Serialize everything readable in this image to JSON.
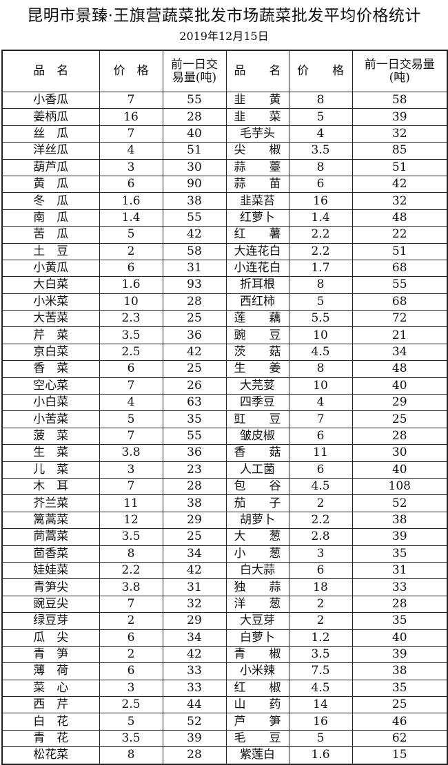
{
  "title": "昆明市景臻·王旗营蔬菜批发市场蔬菜批发平均价格统计",
  "date": "2019年12月15日",
  "headers": {
    "name": "品　名",
    "price": "价　格",
    "volume_left": "前一日交易量(吨)",
    "name2": "品　　名",
    "price2": "价　　格",
    "volume_right": "前一日交易量(吨)"
  },
  "rows": [
    [
      "小香瓜",
      "7",
      "55",
      "韭　　黄",
      "8",
      "58"
    ],
    [
      "姜柄瓜",
      "16",
      "28",
      "韭　　菜",
      "5",
      "39"
    ],
    [
      "丝　瓜",
      "7",
      "40",
      "毛芋头",
      "4",
      "32"
    ],
    [
      "洋丝瓜",
      "4",
      "51",
      "尖　　椒",
      "3.5",
      "85"
    ],
    [
      "葫芦瓜",
      "3",
      "30",
      "蒜　　薹",
      "8",
      "51"
    ],
    [
      "黄　瓜",
      "6",
      "90",
      "蒜　　苗",
      "6",
      "42"
    ],
    [
      "冬　瓜",
      "1.6",
      "38",
      "韭菜苔",
      "16",
      "32"
    ],
    [
      "南　瓜",
      "1.4",
      "55",
      "红萝卜",
      "1.4",
      "48"
    ],
    [
      "苦　瓜",
      "5",
      "42",
      "红　　薯",
      "2.2",
      "22"
    ],
    [
      "土　豆",
      "2",
      "58",
      "大连花白",
      "2.2",
      "51"
    ],
    [
      "小黄瓜",
      "6",
      "31",
      "小连花白",
      "1.7",
      "68"
    ],
    [
      "大白菜",
      "1.6",
      "93",
      "折耳根",
      "8",
      "55"
    ],
    [
      "小米菜",
      "10",
      "28",
      "西红柿",
      "5",
      "68"
    ],
    [
      "大苦菜",
      "2.3",
      "25",
      "莲　　藕",
      "5.5",
      "72"
    ],
    [
      "芹　菜",
      "3.5",
      "36",
      "豌　　豆",
      "10",
      "21"
    ],
    [
      "京白菜",
      "2.5",
      "42",
      "茨　　菇",
      "4.5",
      "34"
    ],
    [
      "香　菜",
      "6",
      "25",
      "生　　姜",
      "8",
      "48"
    ],
    [
      "空心菜",
      "7",
      "26",
      "大芫荽",
      "10",
      "40"
    ],
    [
      "小白菜",
      "4",
      "63",
      "四季豆",
      "4",
      "29"
    ],
    [
      "小苦菜",
      "5",
      "35",
      "豇　　豆",
      "7",
      "25"
    ],
    [
      "菠　菜",
      "7",
      "55",
      "皱皮椒",
      "6",
      "28"
    ],
    [
      "生　菜",
      "3.8",
      "36",
      "香　　菇",
      "11",
      "30"
    ],
    [
      "儿　菜",
      "3",
      "23",
      "人工菌",
      "6",
      "40"
    ],
    [
      "木　耳",
      "7",
      "28",
      "包　　谷",
      "4.5",
      "108"
    ],
    [
      "芥兰菜",
      "11",
      "38",
      "茄　　子",
      "2",
      "52"
    ],
    [
      "篱蒿菜",
      "12",
      "29",
      "胡萝卜",
      "2.2",
      "38"
    ],
    [
      "茼蒿菜",
      "3.5",
      "25",
      "大　　葱",
      "2.8",
      "39"
    ],
    [
      "茴香菜",
      "8",
      "34",
      "小　　葱",
      "3",
      "35"
    ],
    [
      "娃娃菜",
      "2.2",
      "42",
      "白大蒜",
      "6",
      "31"
    ],
    [
      "青笋尖",
      "3.8",
      "31",
      "独　　蒜",
      "18",
      "33"
    ],
    [
      "豌豆尖",
      "7",
      "32",
      "洋　　葱",
      "2",
      "28"
    ],
    [
      "绿豆芽",
      "2",
      "29",
      "大豆芽",
      "2",
      "35"
    ],
    [
      "瓜　尖",
      "6",
      "34",
      "白萝卜",
      "1.2",
      "40"
    ],
    [
      "青　笋",
      "2",
      "42",
      "青　　椒",
      "3.5",
      "39"
    ],
    [
      "薄　荷",
      "6",
      "33",
      "小米辣",
      "7.5",
      "38"
    ],
    [
      "菜　心",
      "3",
      "33",
      "红　　椒",
      "4.5",
      "35"
    ],
    [
      "西　芹",
      "2.5",
      "44",
      "山　　药",
      "14",
      "25"
    ],
    [
      "白　花",
      "5",
      "52",
      "芦　　笋",
      "16",
      "46"
    ],
    [
      "青　花",
      "3.5",
      "39",
      "毛　　豆",
      "5",
      "62"
    ],
    [
      "松花菜",
      "8",
      "28",
      "紫莲白",
      "1.6",
      "15"
    ]
  ]
}
